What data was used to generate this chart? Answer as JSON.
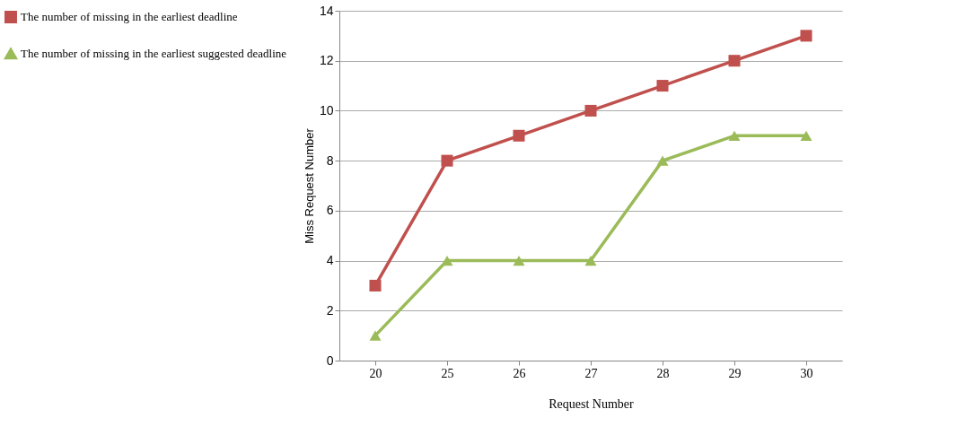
{
  "chart_data": {
    "type": "line",
    "xlabel": "Request Number",
    "ylabel": "Miss Request Number",
    "categories": [
      "20",
      "25",
      "26",
      "27",
      "28",
      "29",
      "30"
    ],
    "series": [
      {
        "name": "The number of missing in the earliest deadline",
        "color": "#c0504d",
        "marker": "square",
        "values": [
          3,
          8,
          9,
          10,
          11,
          12,
          13
        ]
      },
      {
        "name": "The number of missing in the earliest suggested deadline",
        "color": "#9bbb59",
        "marker": "triangle",
        "values": [
          1,
          4,
          4,
          4,
          8,
          9,
          9
        ]
      }
    ],
    "ylim": [
      0,
      14
    ],
    "yticks": [
      0,
      2,
      4,
      6,
      8,
      10,
      12,
      14
    ],
    "grid": "y",
    "legend": "left",
    "line_style": "solid"
  }
}
